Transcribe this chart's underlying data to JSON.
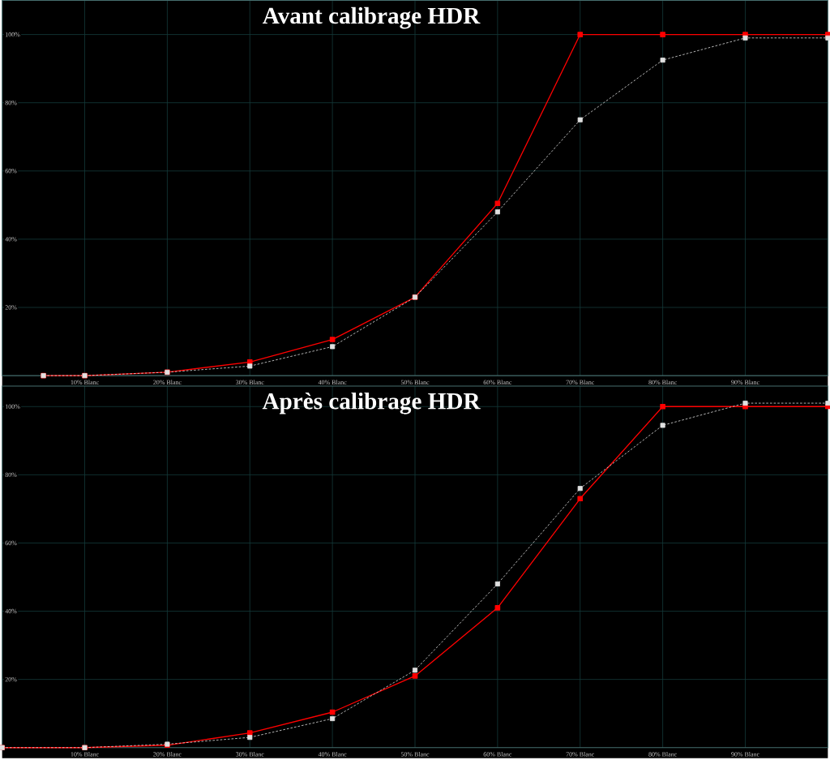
{
  "chart_data": [
    {
      "type": "line",
      "title": "Avant calibrage HDR",
      "x": [
        5,
        10,
        20,
        30,
        40,
        50,
        60,
        70,
        80,
        90,
        100
      ],
      "series": [
        {
          "color": "#ff0000",
          "line_style": "solid",
          "values": [
            0,
            0,
            1,
            4,
            10.6,
            23,
            50.5,
            100,
            100,
            100,
            100
          ]
        },
        {
          "color": "#e0e0e0",
          "line_style": "dashed",
          "values": [
            0,
            0,
            1,
            2.8,
            8.5,
            23,
            48,
            75,
            92.5,
            99,
            99
          ]
        }
      ],
      "xlim": [
        0,
        100
      ],
      "ylim": [
        0,
        110
      ],
      "xticks": [
        {
          "value": 10,
          "label": "10% Blanc"
        },
        {
          "value": 20,
          "label": "20% Blanc"
        },
        {
          "value": 30,
          "label": "30% Blanc"
        },
        {
          "value": 40,
          "label": "40% Blanc"
        },
        {
          "value": 50,
          "label": "50% Blanc"
        },
        {
          "value": 60,
          "label": "60% Blanc"
        },
        {
          "value": 70,
          "label": "70% Blanc"
        },
        {
          "value": 80,
          "label": "80% Blanc"
        },
        {
          "value": 90,
          "label": "90% Blanc"
        }
      ],
      "yticks": [
        {
          "value": 20,
          "label": "20%"
        },
        {
          "value": 40,
          "label": "40%"
        },
        {
          "value": 60,
          "label": "60%"
        },
        {
          "value": 80,
          "label": "80%"
        },
        {
          "value": 100,
          "label": "100%"
        }
      ],
      "grid": true,
      "marker": "square"
    },
    {
      "type": "line",
      "title": "Après calibrage HDR",
      "x": [
        0,
        10,
        20,
        30,
        40,
        50,
        60,
        70,
        80,
        90,
        100
      ],
      "series": [
        {
          "color": "#ff0000",
          "line_style": "solid",
          "values": [
            0,
            0,
            0.7,
            4.3,
            10.4,
            21,
            41,
            73,
            100,
            100,
            100
          ]
        },
        {
          "color": "#e0e0e0",
          "line_style": "dashed",
          "values": [
            0,
            0,
            1,
            3,
            8.5,
            22.7,
            48,
            76,
            94.5,
            101,
            101
          ]
        }
      ],
      "xlim": [
        0,
        100
      ],
      "ylim": [
        0,
        106
      ],
      "xticks": [
        {
          "value": 10,
          "label": "10% Blanc"
        },
        {
          "value": 20,
          "label": "20% Blanc"
        },
        {
          "value": 30,
          "label": "30% Blanc"
        },
        {
          "value": 40,
          "label": "40% Blanc"
        },
        {
          "value": 50,
          "label": "50% Blanc"
        },
        {
          "value": 60,
          "label": "60% Blanc"
        },
        {
          "value": 70,
          "label": "70% Blanc"
        },
        {
          "value": 80,
          "label": "80% Blanc"
        },
        {
          "value": 90,
          "label": "90% Blanc"
        }
      ],
      "yticks": [
        {
          "value": 20,
          "label": "20%"
        },
        {
          "value": 40,
          "label": "40%"
        },
        {
          "value": 60,
          "label": "60%"
        },
        {
          "value": 80,
          "label": "80%"
        },
        {
          "value": 100,
          "label": "100%"
        }
      ],
      "grid": true,
      "marker": "square"
    }
  ]
}
